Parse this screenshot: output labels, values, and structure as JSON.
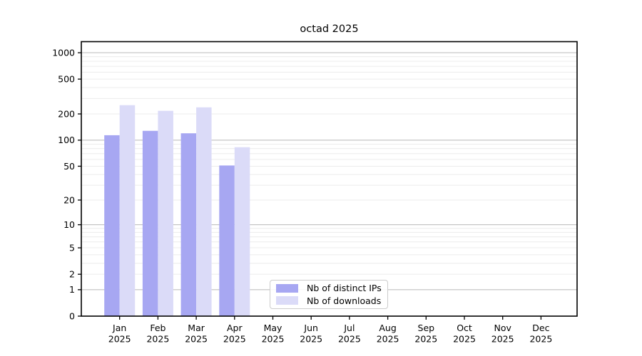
{
  "chart_data": {
    "type": "bar",
    "title": "octad 2025",
    "categories": [
      "Jan",
      "Feb",
      "Mar",
      "Apr",
      "May",
      "Jun",
      "Jul",
      "Aug",
      "Sep",
      "Oct",
      "Nov",
      "Dec"
    ],
    "x_tick_second_line": "2025",
    "series": [
      {
        "name": "Nb of distinct IPs",
        "color": "#a7a7f2",
        "values": [
          114,
          128,
          120,
          51,
          null,
          null,
          null,
          null,
          null,
          null,
          null,
          null
        ]
      },
      {
        "name": "Nb of downloads",
        "color": "#dbdbf8",
        "values": [
          252,
          217,
          238,
          83,
          null,
          null,
          null,
          null,
          null,
          null,
          null,
          null
        ]
      }
    ],
    "yscale": "log10(value+1)",
    "ytick_values": [
      0,
      1,
      2,
      5,
      10,
      20,
      50,
      100,
      200,
      500,
      1000
    ],
    "ytick_labels": [
      "0",
      "1",
      "2",
      "5",
      "10",
      "20",
      "50",
      "100",
      "200",
      "500",
      "1000"
    ],
    "ylim": [
      0,
      1340
    ],
    "xlabel": "",
    "ylabel": "",
    "grid": true,
    "legend_position": "inside-bottom-center",
    "colors": {
      "axis": "#000000",
      "major_grid": "#b8b8b8",
      "minor_grid": "#ececec",
      "text": "#000000",
      "background": "#ffffff"
    }
  }
}
